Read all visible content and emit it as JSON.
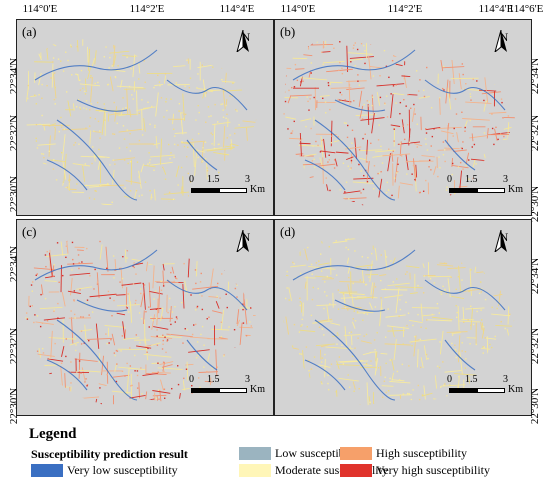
{
  "axes": {
    "lon_labels": [
      "114°0'E",
      "114°2'E",
      "114°4'E",
      "114°6'E"
    ],
    "lat_labels": [
      "22°34'N",
      "22°32'N",
      "22°30'N"
    ]
  },
  "panels": [
    {
      "label": "(a)",
      "dominant": "moderate"
    },
    {
      "label": "(b)",
      "dominant": "high"
    },
    {
      "label": "(c)",
      "dominant": "high"
    },
    {
      "label": "(d)",
      "dominant": "moderate"
    }
  ],
  "north_arrow": "N",
  "scale_bar": {
    "ticks": [
      "0",
      "1.5",
      "3"
    ],
    "unit": "Km"
  },
  "legend": {
    "title": "Legend",
    "subtitle": "Susceptibility prediction result",
    "items": [
      {
        "label": "Low susceptibility",
        "color": "#9bb4c0"
      },
      {
        "label": "High susceptibility",
        "color": "#f6a06a"
      },
      {
        "label": "Very low susceptibility",
        "color": "#3a6fc2"
      },
      {
        "label": "Moderate susceptibility",
        "color": "#fff6b8"
      },
      {
        "label": "Very high susceptibility",
        "color": "#e0332c"
      }
    ]
  },
  "colors": {
    "background": "#d3d3d3",
    "water": "#3a6fc2",
    "moderate": "#f5e79a",
    "high": "#f29070",
    "very_high": "#d7302a"
  }
}
